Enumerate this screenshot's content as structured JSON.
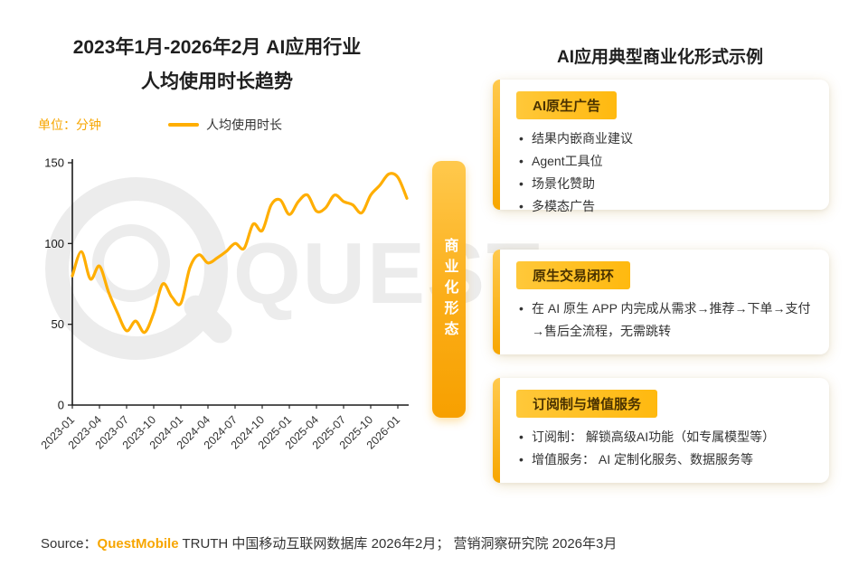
{
  "left": {
    "title_line1": "2023年1月-2026年2月 AI应用行业",
    "title_line2": "人均使用时长趋势",
    "unit_label": "单位：分钟",
    "legend_label": "人均使用时长"
  },
  "middle": {
    "vertical_label": "商业化形态"
  },
  "right": {
    "title": "AI应用典型商业化形式示例",
    "cards": [
      {
        "badge": "AI原生广告",
        "items": [
          "结果内嵌商业建议",
          "Agent工具位",
          "场景化赞助",
          "多模态广告"
        ]
      },
      {
        "badge": "原生交易闭环",
        "items": [
          "在 AI 原生 APP 内完成从需求→推荐→下单→支付→售后全流程，无需跳转"
        ]
      },
      {
        "badge": "订阅制与增值服务",
        "items": [
          "订阅制： 解锁高级AI功能（如专属模型等）",
          "增值服务： AI 定制化服务、数据服务等"
        ]
      }
    ]
  },
  "watermark": {
    "text": "QUEST"
  },
  "source": {
    "prefix": "Source：",
    "brand": "QuestMobile",
    "suffix": " TRUTH 中国移动互联网数据库 2026年2月； 营销洞察研究院 2026年3月"
  },
  "colors": {
    "accent_orange": "#F7A600",
    "line_orange": "#FFAE00",
    "badge_yellow": "#FFC125",
    "watermark_gray": "#ECECEC"
  },
  "chart_data": {
    "type": "line",
    "title": "2023年1月-2026年2月 AI应用行业人均使用时长趋势",
    "ylabel": "分钟",
    "xlabel": "",
    "ylim": [
      0,
      150
    ],
    "yticks": [
      0,
      50,
      100,
      150
    ],
    "grid": false,
    "legend_position": "top",
    "x": [
      "2023-01",
      "2023-02",
      "2023-03",
      "2023-04",
      "2023-05",
      "2023-06",
      "2023-07",
      "2023-08",
      "2023-09",
      "2023-10",
      "2023-11",
      "2023-12",
      "2024-01",
      "2024-02",
      "2024-03",
      "2024-04",
      "2024-05",
      "2024-06",
      "2024-07",
      "2024-08",
      "2024-09",
      "2024-10",
      "2024-11",
      "2024-12",
      "2025-01",
      "2025-02",
      "2025-03",
      "2025-04",
      "2025-05",
      "2025-06",
      "2025-07",
      "2025-08",
      "2025-09",
      "2025-10",
      "2025-11",
      "2025-12",
      "2026-01",
      "2026-02"
    ],
    "x_tick_labels": [
      "2023-01",
      "2023-04",
      "2023-07",
      "2023-10",
      "2024-01",
      "2024-04",
      "2024-07",
      "2024-10",
      "2025-01",
      "2025-04",
      "2025-07",
      "2025-10",
      "2026-01"
    ],
    "series": [
      {
        "name": "人均使用时长",
        "color": "#FFAE00",
        "values": [
          80,
          95,
          78,
          86,
          70,
          57,
          46,
          52,
          45,
          57,
          75,
          67,
          63,
          85,
          93,
          88,
          91,
          95,
          100,
          97,
          112,
          108,
          124,
          127,
          118,
          126,
          130,
          120,
          122,
          130,
          126,
          124,
          119,
          130,
          136,
          143,
          141,
          128
        ]
      }
    ]
  }
}
